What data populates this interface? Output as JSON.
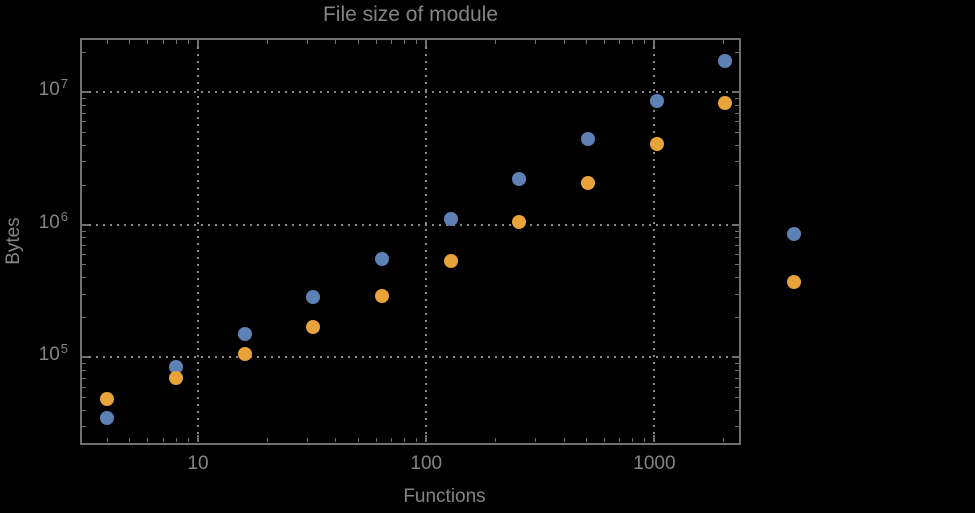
{
  "chart_data": {
    "type": "scatter",
    "title": "File size of module",
    "xlabel": "Functions",
    "ylabel": "Bytes",
    "x_scale": "log",
    "y_scale": "log",
    "xlim": [
      3.07,
      2371
    ],
    "ylim": [
      22100,
      25120000
    ],
    "grid": {
      "style": "dotted",
      "x_at": [
        10,
        100,
        1000
      ],
      "y_at": [
        100000,
        1000000,
        10000000
      ]
    },
    "x": [
      4,
      8,
      16,
      32,
      64,
      128,
      256,
      512,
      1024,
      2048,
      4096
    ],
    "series": [
      {
        "name": "blue-series",
        "color": "#5E81B5",
        "values": [
          35000,
          84000,
          150000,
          284000,
          550000,
          1100000,
          2200000,
          4400000,
          8600000,
          17100000,
          850000
        ]
      },
      {
        "name": "orange-series",
        "color": "#E8A33B",
        "values": [
          48000,
          70000,
          105000,
          168000,
          288000,
          530000,
          1040000,
          2060000,
          4050000,
          8300000,
          370000
        ]
      }
    ],
    "xticks": [
      {
        "value": 10,
        "label": "10"
      },
      {
        "value": 100,
        "label": "100"
      },
      {
        "value": 1000,
        "label": "1000"
      }
    ],
    "yticks": [
      {
        "value": 100000,
        "label": "10^5"
      },
      {
        "value": 1000000,
        "label": "10^6"
      },
      {
        "value": 10000000,
        "label": "10^7"
      }
    ]
  },
  "colors": {
    "background": "#000000",
    "text": "#848484",
    "frame": "#6F6F6F",
    "grid": "#8A8A8A"
  }
}
